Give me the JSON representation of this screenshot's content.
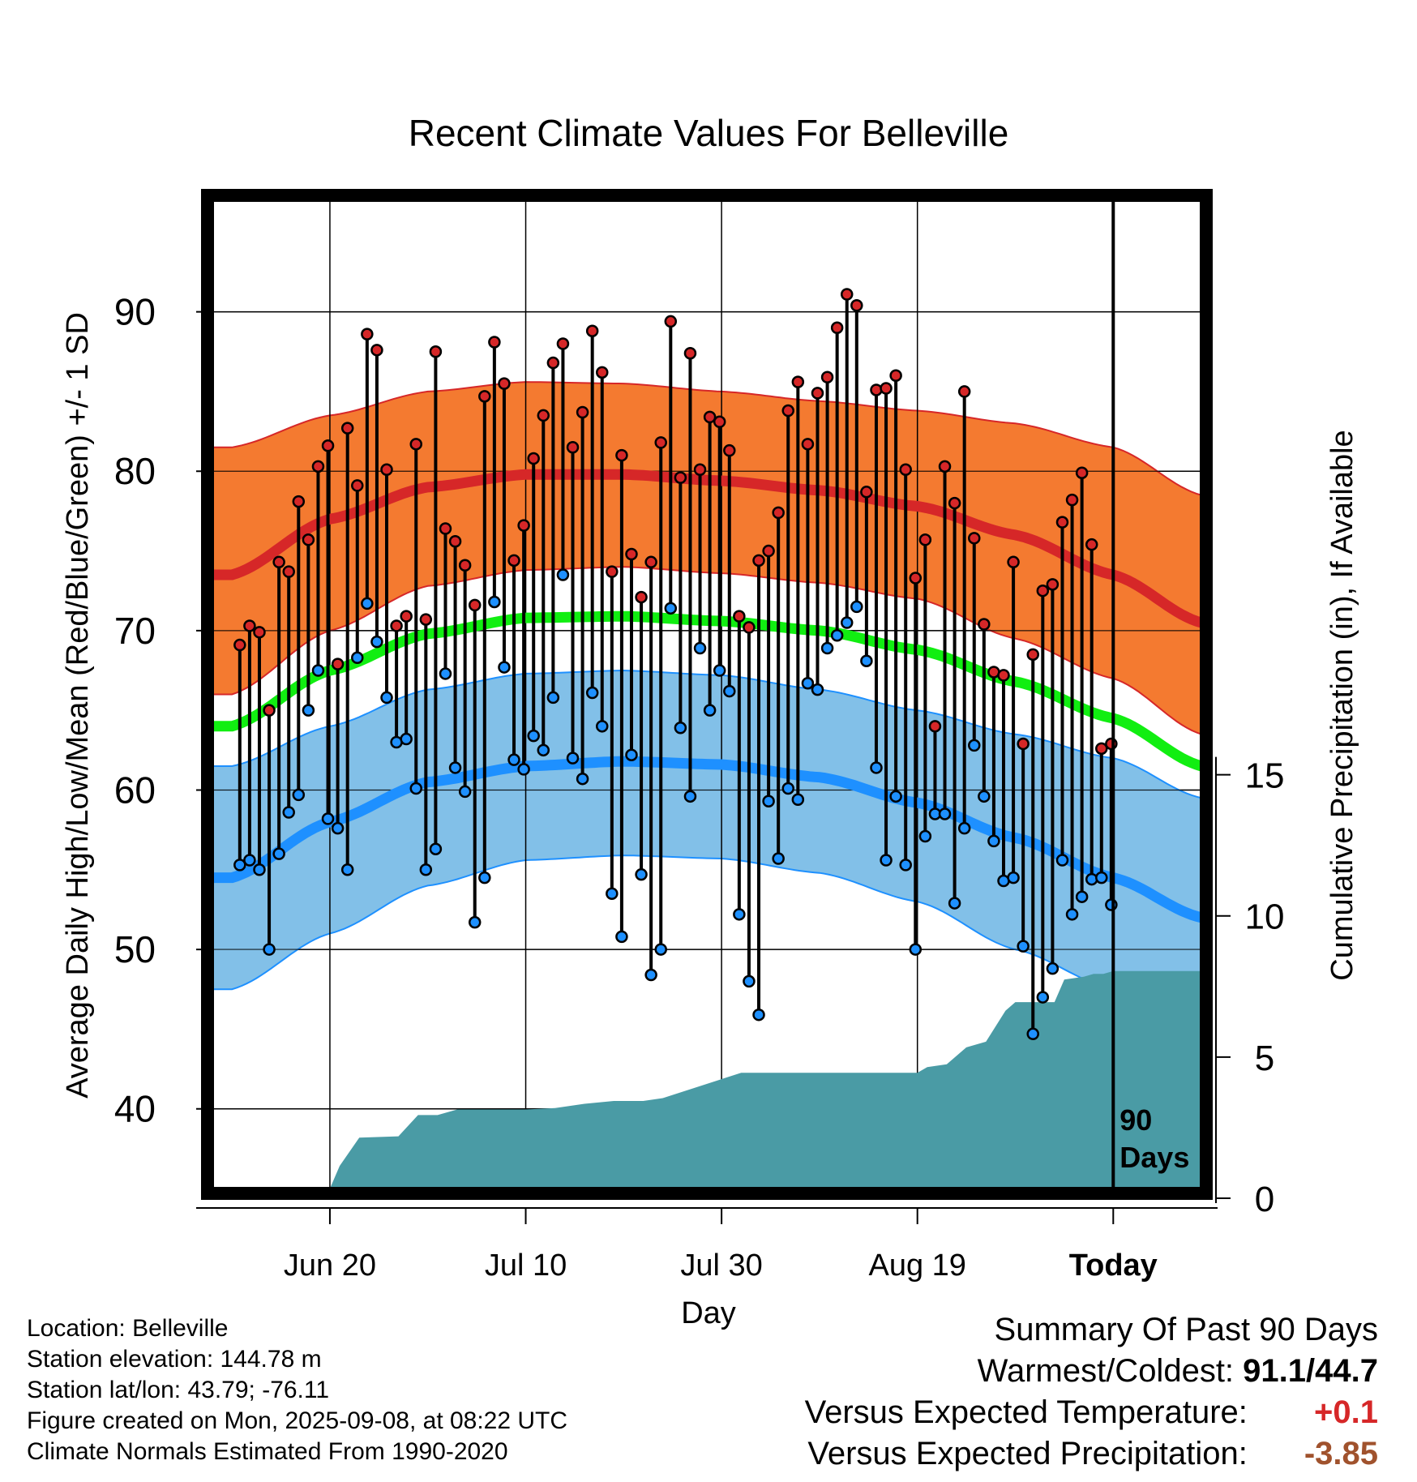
{
  "title": "Recent Climate Values For Belleville",
  "chart_data": {
    "type": "line",
    "title": "Recent Climate Values For Belleville",
    "xlabel": "Day",
    "ylabel": "Average Daily High/Low/Mean (Red/Blue/Green) +/- 1 SD",
    "y2label": "Cumulative Precipitation (in), If Available",
    "ylim": [
      35,
      97
    ],
    "y2lim": [
      0,
      35
    ],
    "yticks": [
      "40",
      "50",
      "60",
      "70",
      "80",
      "90"
    ],
    "y2ticks": [
      "0",
      "5",
      "10",
      "15"
    ],
    "xlim_days": [
      -92,
      9
    ],
    "xticks": [
      {
        "label": "Jun 20",
        "day": -80
      },
      {
        "label": "Jul 10",
        "day": -60
      },
      {
        "label": "Jul 30",
        "day": -40
      },
      {
        "label": "Aug 19",
        "day": -20
      },
      {
        "label": "Today",
        "day": 0
      }
    ],
    "window_label_line1": "90",
    "window_label_line2": "Days",
    "normals": {
      "day": [
        -90,
        -80,
        -70,
        -60,
        -50,
        -40,
        -30,
        -20,
        -10,
        0,
        9
      ],
      "high_mean": [
        73.5,
        77.0,
        79.0,
        79.8,
        79.8,
        79.4,
        78.8,
        77.8,
        76.0,
        73.5,
        70.5
      ],
      "high_upper": [
        81.5,
        83.5,
        85.0,
        85.6,
        85.5,
        85.0,
        84.4,
        83.8,
        83.0,
        81.5,
        78.5
      ],
      "high_lower": [
        66.0,
        70.0,
        72.8,
        73.8,
        74.0,
        73.6,
        73.0,
        72.0,
        69.5,
        67.0,
        63.5
      ],
      "mean": [
        64.0,
        67.5,
        69.8,
        70.8,
        70.9,
        70.6,
        70.0,
        68.8,
        66.8,
        64.5,
        61.5
      ],
      "low_mean": [
        54.5,
        58.0,
        60.5,
        61.5,
        61.8,
        61.6,
        60.8,
        59.2,
        57.0,
        54.5,
        52.0
      ],
      "low_upper": [
        61.5,
        64.0,
        66.3,
        67.3,
        67.5,
        67.2,
        66.3,
        65.0,
        63.5,
        62.0,
        59.5
      ],
      "low_lower": [
        47.5,
        51.0,
        54.0,
        55.6,
        55.9,
        55.7,
        54.8,
        53.0,
        50.0,
        47.5,
        44.5
      ]
    },
    "series": [
      {
        "name": "High",
        "values": [
          69.1,
          70.3,
          69.9,
          65.0,
          74.3,
          73.7,
          78.1,
          75.7,
          80.3,
          81.6,
          67.9,
          82.7,
          79.1,
          88.6,
          87.6,
          80.1,
          70.3,
          70.9,
          81.7,
          70.7,
          87.5,
          76.4,
          75.6,
          74.1,
          71.6,
          84.7,
          88.1,
          85.5,
          74.4,
          76.6,
          80.8,
          83.5,
          86.8,
          88.0,
          81.5,
          83.7,
          88.8,
          86.2,
          73.7,
          81.0,
          74.8,
          72.1,
          74.3,
          81.8,
          89.4,
          79.6,
          87.4,
          80.1,
          83.4,
          83.1,
          81.3,
          70.9,
          70.2,
          74.4,
          75.0,
          77.4,
          83.8,
          85.6,
          81.7,
          84.9,
          85.9,
          89.0,
          91.1,
          90.4,
          78.7,
          85.1,
          85.2,
          86.0,
          80.1,
          73.3,
          75.7,
          64.0,
          80.3,
          78.0,
          85.0,
          75.8,
          70.4,
          67.4,
          67.2,
          74.3,
          62.9,
          68.5,
          72.5,
          72.9,
          76.8,
          78.2,
          79.9,
          75.4,
          62.6,
          62.9
        ]
      },
      {
        "name": "Low",
        "values": [
          55.3,
          55.6,
          55.0,
          50.0,
          56.0,
          58.6,
          59.7,
          65.0,
          67.5,
          58.2,
          57.6,
          55.0,
          68.3,
          71.7,
          69.3,
          65.8,
          63.0,
          63.2,
          60.1,
          55.0,
          56.3,
          67.3,
          61.4,
          59.9,
          51.7,
          54.5,
          71.8,
          67.7,
          61.9,
          61.3,
          63.4,
          62.5,
          65.8,
          73.5,
          62.0,
          60.7,
          66.1,
          64.0,
          53.5,
          50.8,
          62.2,
          54.7,
          48.4,
          50.0,
          71.4,
          63.9,
          59.6,
          68.9,
          65.0,
          67.5,
          66.2,
          52.2,
          48.0,
          45.9,
          59.3,
          55.7,
          60.1,
          59.4,
          66.7,
          66.3,
          68.9,
          69.7,
          70.5,
          71.5,
          68.1,
          61.4,
          55.6,
          59.6,
          55.3,
          50.0,
          57.1,
          58.5,
          58.5,
          52.9,
          57.6,
          62.8,
          59.6,
          56.8,
          54.3,
          54.5,
          50.2,
          44.7,
          47.0,
          48.8,
          55.6,
          52.2,
          53.3,
          54.4,
          54.5,
          52.8
        ]
      }
    ],
    "precipitation": {
      "day": [
        -90,
        -80,
        -79,
        -77,
        -73,
        -71,
        -69,
        -67,
        -60,
        -57,
        -54,
        -51,
        -48,
        -46,
        -38,
        -35,
        -20,
        -19,
        -17,
        -15,
        -13,
        -11,
        -10,
        -8,
        -6,
        -5,
        -3,
        -2,
        -1,
        0,
        9
      ],
      "cumulative": [
        0.0,
        0.0,
        0.8,
        1.8,
        1.85,
        2.6,
        2.6,
        2.8,
        2.8,
        2.85,
        3.0,
        3.1,
        3.1,
        3.2,
        4.1,
        4.1,
        4.1,
        4.3,
        4.4,
        5.0,
        5.2,
        6.3,
        6.6,
        6.6,
        6.6,
        7.4,
        7.5,
        7.6,
        7.6,
        7.7,
        7.7
      ]
    }
  },
  "info": {
    "location": "Location: Belleville",
    "elevation": "Station elevation: 144.78 m",
    "latlon": "Station lat/lon: 43.79; -76.11",
    "created": "Figure created on Mon, 2025-09-08, at 08:22 UTC",
    "normals": "Climate Normals Estimated From 1990-2020"
  },
  "summary": {
    "heading": "Summary Of Past 90 Days",
    "warmest_label": "Warmest/Coldest:",
    "warmest_value": "91.1/44.7",
    "temp_label": "Versus Expected Temperature:",
    "temp_value": "+0.1",
    "precip_label": "Versus Expected Precipitation:",
    "precip_value": "-3.85"
  },
  "colors": {
    "high_band": "#f47a30",
    "high_line": "#d62728",
    "mean_line": "#11ee11",
    "low_band": "#82c0e8",
    "low_line": "#1e90ff",
    "precip": "#4a9ba5",
    "high_dot": "#d62728",
    "low_dot": "#1e90ff"
  }
}
